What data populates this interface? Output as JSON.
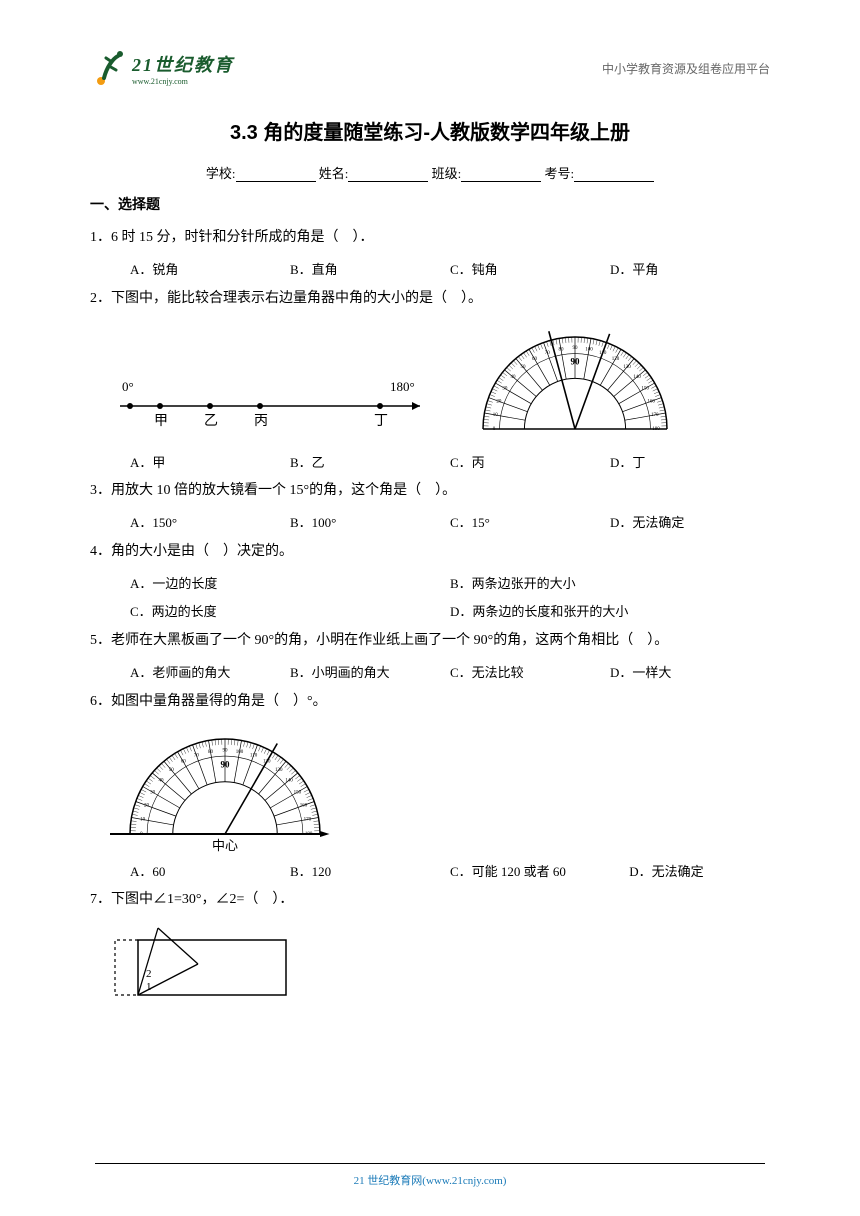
{
  "header": {
    "logo_main": "21世纪教育",
    "logo_sub": "www.21cnjy.com",
    "right_text": "中小学教育资源及组卷应用平台"
  },
  "title": "3.3 角的度量随堂练习-人教版数学四年级上册",
  "form": {
    "school_label": "学校:",
    "name_label": "姓名:",
    "class_label": "班级:",
    "id_label": "考号:"
  },
  "section1": "一、选择题",
  "q1": {
    "text": "1．6 时 15 分，时针和分针所成的角是（　）．",
    "a": "A．锐角",
    "b": "B．直角",
    "c": "C．钝角",
    "d": "D．平角"
  },
  "q2": {
    "text": "2．下图中，能比较合理表示右边量角器中角的大小的是（　）。",
    "line": {
      "left": "0°",
      "right": "180°",
      "labels": [
        "甲",
        "乙",
        "丙",
        "丁"
      ]
    },
    "a": "A．甲",
    "b": "B．乙",
    "c": "C．丙",
    "d": "D．丁"
  },
  "q3": {
    "text": "3．用放大 10 倍的放大镜看一个 15°的角，这个角是（　）。",
    "a": "A．150°",
    "b": "B．100°",
    "c": "C．15°",
    "d": "D．无法确定"
  },
  "q4": {
    "text": "4．角的大小是由（　）决定的。",
    "a": "A．一边的长度",
    "b": "B．两条边张开的大小",
    "c": "C．两边的长度",
    "d": "D．两条边的长度和张开的大小"
  },
  "q5": {
    "text": "5．老师在大黑板画了一个 90°的角，小明在作业纸上画了一个 90°的角，这两个角相比（　）。",
    "a": "A．老师画的角大",
    "b": "B．小明画的角大",
    "c": "C．无法比较",
    "d": "D．一样大"
  },
  "q6": {
    "text": "6．如图中量角器量得的角是（　）°。",
    "center_label": "中心",
    "a": "A．60",
    "b": "B．120",
    "c": "C．可能 120 或者 60",
    "d": "D．无法确定"
  },
  "q7": {
    "text": "7．下图中∠1=30°，∠2=（　）．"
  },
  "footer": "21 世纪教育网(www.21cnjy.com)",
  "colors": {
    "brand_green": "#1a5c2e",
    "brand_orange": "#f39c12",
    "footer_blue": "#1a7ab8"
  }
}
